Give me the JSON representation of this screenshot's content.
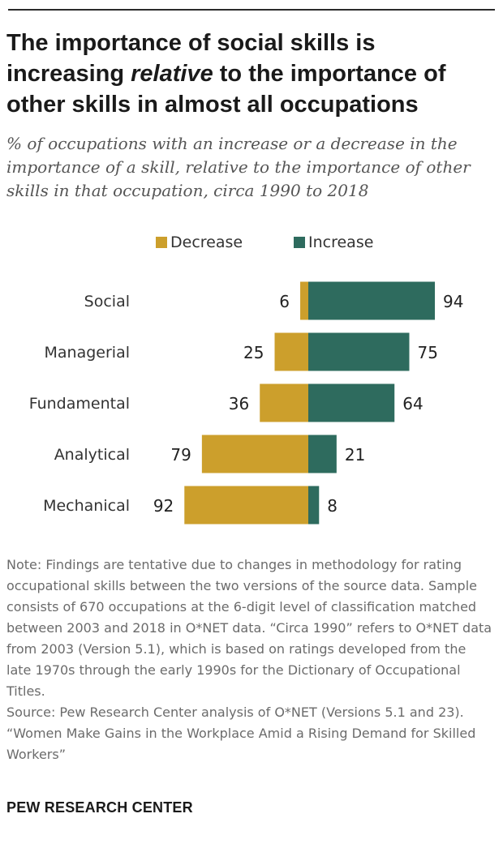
{
  "header": {
    "title_part1": "The importance of social skills is increasing ",
    "title_italic": "relative",
    "title_part2": " to the importance of other skills in almost all occupations",
    "subtitle": "% of occupations with an increase or a decrease in the importance of a skill, relative to the importance of other skills in that occupation, circa 1990 to 2018"
  },
  "legend": {
    "decrease_label": "Decrease",
    "increase_label": "Increase"
  },
  "colors": {
    "decrease": "#cc9f2c",
    "increase": "#2e6b5e"
  },
  "chart_data": {
    "type": "bar",
    "orientation": "horizontal-diverging",
    "title": "The importance of social skills is increasing relative to the importance of other skills in almost all occupations",
    "categories": [
      "Social",
      "Managerial",
      "Fundamental",
      "Analytical",
      "Mechanical"
    ],
    "series": [
      {
        "name": "Decrease",
        "values": [
          6,
          25,
          36,
          79,
          92
        ],
        "color": "#cc9f2c"
      },
      {
        "name": "Increase",
        "values": [
          94,
          75,
          64,
          21,
          8
        ],
        "color": "#2e6b5e"
      }
    ],
    "xlim": [
      -100,
      100
    ],
    "grid": false,
    "legend_position": "top-center"
  },
  "notes": {
    "note": "Note: Findings are tentative due to changes in methodology for rating occupational skills between the two versions of the source data. Sample consists of 670 occupations at the 6-digit level of classification matched between 2003 and 2018 in O*NET data. “Circa 1990” refers to O*NET data from 2003 (Version 5.1), which is based on ratings developed from the late 1970s through the early 1990s for the Dictionary of Occupational Titles.",
    "source": "Source: Pew Research Center analysis of O*NET (Versions 5.1 and 23).",
    "report": "“Women Make Gains in the Workplace Amid a Rising Demand for Skilled Workers”"
  },
  "footer": {
    "brand": "PEW RESEARCH CENTER"
  }
}
